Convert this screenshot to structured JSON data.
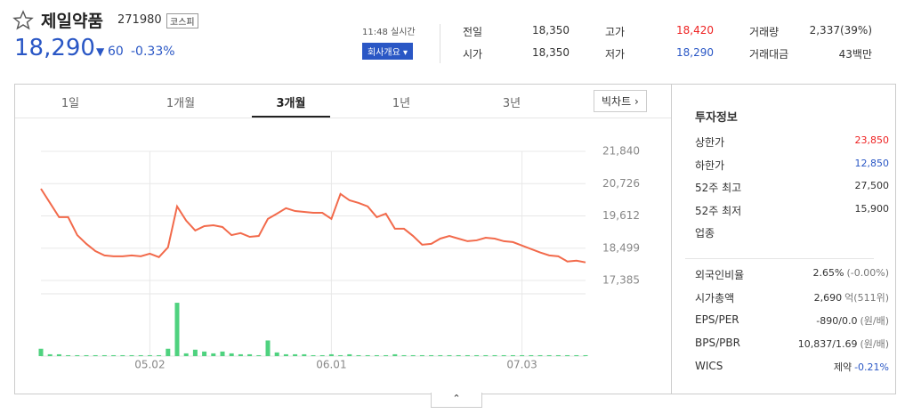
{
  "header": {
    "title": "제일약품",
    "code": "271980",
    "market": "코스피",
    "price": "18,290",
    "change": "60",
    "change_rate": "-0.33%",
    "time": "11:48 실시간",
    "company_button": "회사개요",
    "stats": [
      [
        "전일",
        "18,350",
        "고가",
        "18,420",
        "거래량",
        "2,337(39%)"
      ],
      [
        "시가",
        "18,350",
        "저가",
        "18,290",
        "거래대금",
        "43백만"
      ]
    ]
  },
  "tabs": [
    "1일",
    "1개월",
    "3개월",
    "1년",
    "3년"
  ],
  "big_chart": "빅차트",
  "sidebar": {
    "title": "투자정보",
    "rows1": [
      [
        "상한가",
        "23,850"
      ],
      [
        "하한가",
        "12,850"
      ],
      [
        "52주 최고",
        "27,500"
      ],
      [
        "52주 최저",
        "15,900"
      ],
      [
        "업종"
      ]
    ],
    "rows2": [
      [
        "외국인비율",
        "2.65%",
        "(-0.00%)"
      ],
      [
        "시가총액",
        "2,690",
        "억(511위)"
      ],
      [
        "EPS/PER",
        "-890/0.0",
        "(원/배)"
      ],
      [
        "BPS/PBR",
        "10,837/1.69",
        "(원/배)"
      ],
      [
        "WICS",
        "제약",
        "-0.21%"
      ]
    ]
  },
  "chart_data": {
    "type": "line",
    "categories": [
      null,
      null,
      null,
      null,
      null,
      null,
      null,
      null,
      null,
      null,
      null,
      null,
      "05.02",
      null,
      null,
      null,
      null,
      null,
      null,
      null,
      null,
      null,
      null,
      null,
      null,
      null,
      null,
      null,
      null,
      null,
      null,
      null,
      "06.01",
      null,
      null,
      null,
      null,
      null,
      null,
      null,
      null,
      null,
      null,
      null,
      null,
      null,
      null,
      null,
      null,
      null,
      null,
      null,
      null,
      "07.03",
      null,
      null,
      null,
      null,
      null,
      null,
      null
    ],
    "series": [
      {
        "type": "line",
        "color": "#f26a4b",
        "values": [
          20550,
          20060,
          19570,
          19570,
          18950,
          18650,
          18400,
          18250,
          18220,
          18220,
          18250,
          18220,
          18310,
          18190,
          18530,
          19940,
          19450,
          19110,
          19260,
          19290,
          19230,
          18950,
          19020,
          18890,
          18920,
          19510,
          19690,
          19880,
          19780,
          19750,
          19720,
          19720,
          19510,
          20370,
          20150,
          20060,
          19940,
          19570,
          19690,
          19170,
          19170,
          18920,
          18620,
          18650,
          18830,
          18920,
          18830,
          18740,
          18770,
          18860,
          18830,
          18740,
          18710,
          18590,
          18470,
          18350,
          18250,
          18220,
          18040,
          18070,
          18010
        ]
      },
      {
        "type": "bar",
        "axis": "y2",
        "color": "#4fd27f",
        "values": [
          8,
          2,
          2,
          1,
          1,
          1,
          1,
          1,
          1,
          1,
          1,
          1,
          1,
          1,
          8,
          58,
          3,
          7,
          5,
          3,
          5,
          3,
          2,
          2,
          1,
          17,
          4,
          2,
          2,
          2,
          1,
          1,
          2,
          1,
          2,
          1,
          1,
          1,
          1,
          2,
          1,
          1,
          1,
          1,
          1,
          1,
          1,
          1,
          1,
          1,
          1,
          1,
          1,
          1,
          1,
          1,
          1,
          1,
          1,
          1,
          1
        ]
      }
    ],
    "ylim": [
      16925,
      22454
    ],
    "yticks": [
      {
        "value": 17385,
        "label": "17,385"
      },
      {
        "value": 18499,
        "label": "18,499"
      },
      {
        "value": 19612,
        "label": "19,612"
      },
      {
        "value": 20726,
        "label": "20,726"
      },
      {
        "value": 21840,
        "label": "21,840"
      }
    ],
    "y2lim": [
      0,
      60
    ],
    "grid": true
  }
}
